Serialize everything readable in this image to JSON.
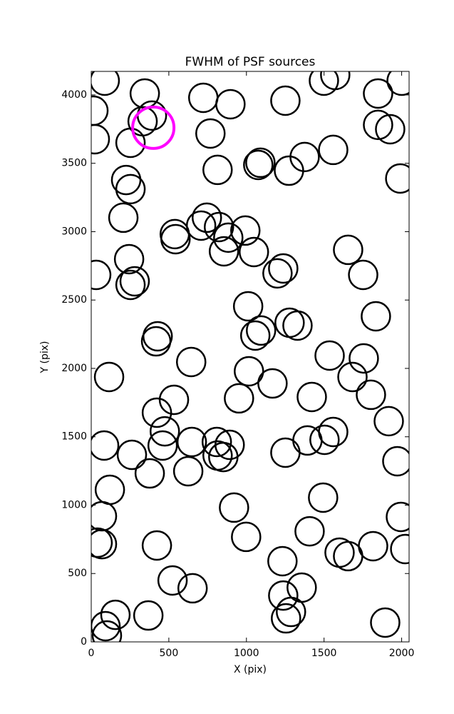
{
  "chart_data": {
    "type": "scatter",
    "title": "FWHM of PSF sources",
    "xlabel": "X (pix)",
    "ylabel": "Y (pix)",
    "xlim": [
      0,
      2048
    ],
    "ylim": [
      0,
      4172
    ],
    "xticks": [
      0,
      500,
      1000,
      1500,
      2000
    ],
    "yticks": [
      0,
      500,
      1000,
      1500,
      2000,
      2500,
      3000,
      3500,
      4000
    ],
    "series": [
      {
        "color": "#000000",
        "x": [
          87,
          14,
          23,
          345,
          391,
          331,
          253,
          722,
          897,
          1251,
          768,
          814,
          1076,
          1090,
          1274,
          1375,
          1559,
          1499,
          1572,
          1848,
          2000,
          1848,
          1926,
          1991,
          225,
          253,
          207,
          244,
          280,
          253,
          32,
          538,
          543,
          745,
          708,
          823,
          883,
          993,
          855,
          1048,
          1200,
          1237,
          1655,
          1752,
          1011,
          1094,
          1057,
          1278,
          1329,
          1834,
          428,
          418,
          644,
          115,
          1016,
          1536,
          1756,
          1683,
          1168,
          533,
          952,
          1421,
          1802,
          1917,
          423,
          474,
          460,
          83,
          648,
          809,
          892,
          814,
          851,
          262,
          377,
          625,
          1251,
          1393,
          1503,
          1559,
          1972,
          120,
          69,
          69,
          41,
          920,
          1494,
          1995,
          998,
          1407,
          423,
          1600,
          1655,
          1816,
          2023,
          1232,
          524,
          653,
          1356,
          1237,
          1287,
          1255,
          156,
          92,
          101,
          368,
          1894
        ],
        "y": [
          4104,
          3885,
          3676,
          4010,
          3849,
          3807,
          3650,
          3979,
          3932,
          3958,
          3718,
          3452,
          3488,
          3504,
          3446,
          3546,
          3598,
          4104,
          4146,
          4010,
          4104,
          3781,
          3749,
          3389,
          3378,
          3311,
          3102,
          2799,
          2637,
          2611,
          2684,
          2982,
          2945,
          3102,
          3044,
          3034,
          2956,
          3008,
          2856,
          2851,
          2695,
          2731,
          2867,
          2684,
          2454,
          2277,
          2240,
          2334,
          2313,
          2381,
          2235,
          2198,
          2047,
          1937,
          1979,
          2094,
          2073,
          1937,
          1890,
          1770,
          1781,
          1791,
          1807,
          1614,
          1676,
          1540,
          1436,
          1436,
          1462,
          1462,
          1441,
          1363,
          1352,
          1368,
          1232,
          1248,
          1384,
          1473,
          1478,
          1535,
          1321,
          1112,
          919,
          715,
          726,
          982,
          1055,
          914,
          768,
          809,
          705,
          653,
          627,
          700,
          679,
          590,
          449,
          392,
          397,
          339,
          219,
          172,
          198,
          115,
          47,
          193,
          141
        ]
      },
      {
        "color": "#ff00ff",
        "x": [
          400
        ],
        "y": [
          3760
        ]
      }
    ]
  }
}
